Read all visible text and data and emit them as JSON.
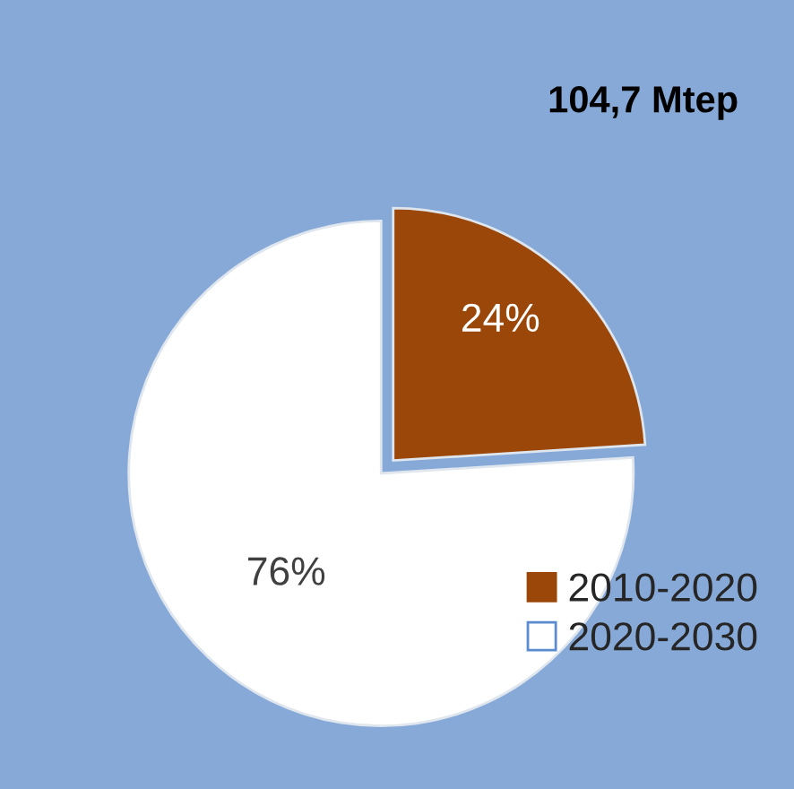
{
  "chart_data": {
    "type": "pie",
    "title": "104,7 Mtep",
    "categories": [
      "2010-2020",
      "2020-2030"
    ],
    "values": [
      24,
      76
    ],
    "colors": [
      "#9a4709",
      "#ffffff"
    ],
    "value_labels": [
      "24%",
      "76%"
    ],
    "legend": "bottom right"
  }
}
